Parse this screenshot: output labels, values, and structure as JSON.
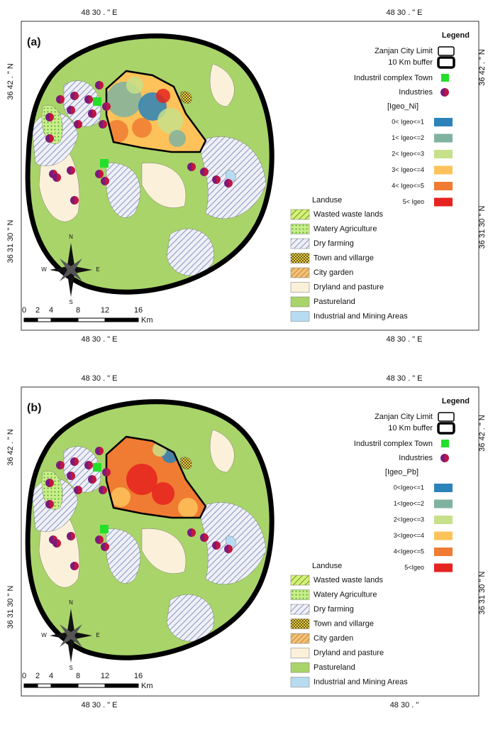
{
  "panels": [
    {
      "label": "(a)",
      "top_coords": [
        "48 30 . \" E",
        "48 30 . \" E"
      ],
      "left_coords": [
        "36 42 . \" N",
        "36 31 30 \" N"
      ],
      "right_coords": [
        "36 42 . \" N",
        "36 31 30 \" N"
      ],
      "bottom_coords": [
        "48 30 . \" E",
        "48 30 . \" E"
      ],
      "legend": {
        "title": "Legend",
        "items": [
          "Zanjan City Limit",
          "10 Km buffer",
          "Industril complex Town",
          "Industries"
        ],
        "igeo_title": "[Igeo_Ni]",
        "classes": [
          {
            "label": "0< Igeo<=1",
            "color": "#2b83ba"
          },
          {
            "label": "1< Igeo<=2",
            "color": "#7fb3a0"
          },
          {
            "label": "2< Igeo<=3",
            "color": "#c7e08a"
          },
          {
            "label": "3< Igeo<=4",
            "color": "#fdc35a"
          },
          {
            "label": "4< Igeo<=5",
            "color": "#f07b32"
          },
          {
            "label": "5< Igeo",
            "color": "#e5231f"
          }
        ]
      },
      "landuse": {
        "title": "Landuse",
        "items": [
          "Wasted waste lands",
          "Watery Agriculture",
          "Dry farming",
          "Town and villarge",
          "City garden",
          "Dryland and pasture",
          "Pastureland",
          "Industrial and Mining Areas"
        ]
      },
      "scale": {
        "ticks": [
          "0",
          "2",
          "4",
          "8",
          "12",
          "16"
        ],
        "unit": "Km"
      },
      "compass": [
        "N",
        "S",
        "E",
        "W"
      ]
    },
    {
      "label": "(b)",
      "top_coords": [
        "48 30 . \" E",
        "48 30 . \" E"
      ],
      "left_coords": [
        "36 42 . \" N",
        "36 31 30 \" N"
      ],
      "right_coords": [
        "36 42 . \" N",
        "36 31 30 \" N"
      ],
      "bottom_coords": [
        "48 30 . \" E",
        "48 30 . \""
      ],
      "legend": {
        "title": "Legend",
        "items": [
          "Zanjan City Limit",
          "10 Km buffer",
          "Industril complex Town",
          "Industries"
        ],
        "igeo_title": "[Igeo_Pb]",
        "classes": [
          {
            "label": "0<Igeo<=1",
            "color": "#2b83ba"
          },
          {
            "label": "1<Igeo<=2",
            "color": "#7fb3a0"
          },
          {
            "label": "2<Igeo<=3",
            "color": "#c7e08a"
          },
          {
            "label": "3<Igeo<=4",
            "color": "#fdc35a"
          },
          {
            "label": "4<Igeo<=5",
            "color": "#f07b32"
          },
          {
            "label": "5<Igeo",
            "color": "#e5231f"
          }
        ]
      },
      "landuse": {
        "title": "Landuse",
        "items": [
          "Wasted waste lands",
          "Watery Agriculture",
          "Dry farming",
          "Town and villarge",
          "City garden",
          "Dryland and pasture",
          "Pastureland",
          "Industrial and Mining Areas"
        ]
      },
      "scale": {
        "ticks": [
          "0",
          "2",
          "4",
          "8",
          "12",
          "16"
        ],
        "unit": "Km"
      },
      "compass": [
        "N",
        "S",
        "E",
        "W"
      ]
    }
  ]
}
